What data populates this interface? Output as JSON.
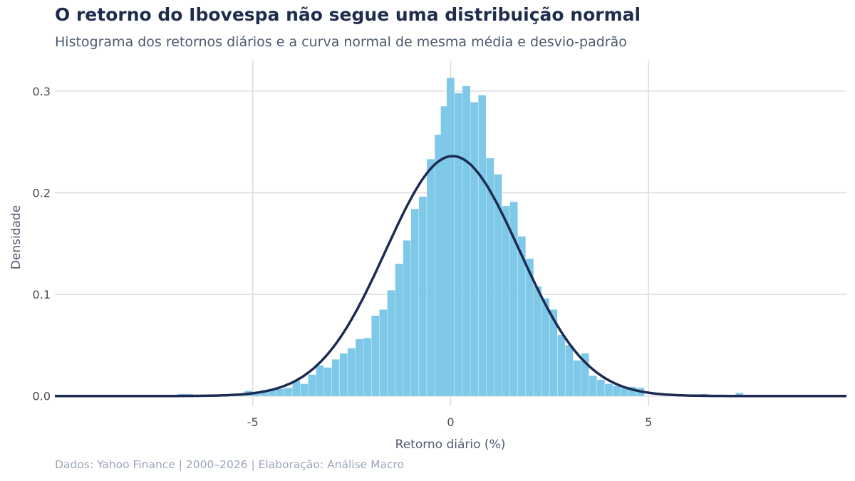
{
  "title": "O retorno do Ibovespa não segue uma distribuição normal",
  "subtitle": "Histograma dos retornos diários e a curva normal de mesma média e desvio-padrão",
  "caption": "Dados: Yahoo Finance | 2000–2026 | Elaboração: Análise Macro",
  "colors": {
    "bars": "#7ec8e8",
    "curve": "#1d2b52",
    "grid": "#dedede",
    "title": "#1f2d4d",
    "subtitle": "#4d5a6e",
    "caption": "#9aa6b8"
  },
  "chart_data": {
    "type": "bar",
    "subtype": "histogram-with-density-curve",
    "xlabel": "Retorno diário (%)",
    "ylabel": "Densidade",
    "xlim": [
      -10,
      10
    ],
    "ylim": [
      -0.01,
      0.33
    ],
    "x_ticks": [
      -5,
      0,
      5
    ],
    "x_tick_labels": [
      "-5",
      "0",
      "5"
    ],
    "y_ticks": [
      0.0,
      0.1,
      0.2,
      0.3
    ],
    "y_tick_labels": [
      "0.0",
      "0.1",
      "0.2",
      "0.3"
    ],
    "grid": true,
    "bin_width": 0.187,
    "histogram": {
      "bin_starts": [
        -6.9,
        -6.7,
        -5.8,
        -5.6,
        -5.4,
        -5.2,
        -5.0,
        -4.8,
        -4.6,
        -4.4,
        -4.2,
        -4.0,
        -3.8,
        -3.6,
        -3.4,
        -3.2,
        -3.0,
        -2.8,
        -2.6,
        -2.4,
        -2.2,
        -2.0,
        -1.8,
        -1.6,
        -1.4,
        -1.2,
        -1.0,
        -0.8,
        -0.6,
        -0.4,
        -0.25,
        -0.1,
        0.1,
        0.3,
        0.5,
        0.7,
        0.9,
        1.1,
        1.3,
        1.5,
        1.7,
        1.9,
        2.1,
        2.3,
        2.5,
        2.7,
        2.9,
        3.1,
        3.3,
        3.5,
        3.7,
        3.9,
        4.1,
        4.3,
        4.5,
        4.7,
        6.3,
        7.2
      ],
      "density": [
        0.002,
        0.002,
        0.001,
        0.002,
        0.002,
        0.005,
        0.003,
        0.006,
        0.006,
        0.007,
        0.008,
        0.015,
        0.012,
        0.021,
        0.03,
        0.028,
        0.036,
        0.042,
        0.047,
        0.056,
        0.057,
        0.079,
        0.085,
        0.104,
        0.13,
        0.153,
        0.184,
        0.196,
        0.233,
        0.257,
        0.285,
        0.313,
        0.298,
        0.305,
        0.289,
        0.296,
        0.234,
        0.218,
        0.187,
        0.191,
        0.157,
        0.135,
        0.108,
        0.096,
        0.085,
        0.06,
        0.05,
        0.035,
        0.042,
        0.02,
        0.016,
        0.012,
        0.01,
        0.008,
        0.009,
        0.008,
        0.002,
        0.003
      ]
    },
    "normal_curve": {
      "name": "Normal",
      "mean": 0.05,
      "sd": 1.69,
      "peak_density": 0.236
    }
  }
}
